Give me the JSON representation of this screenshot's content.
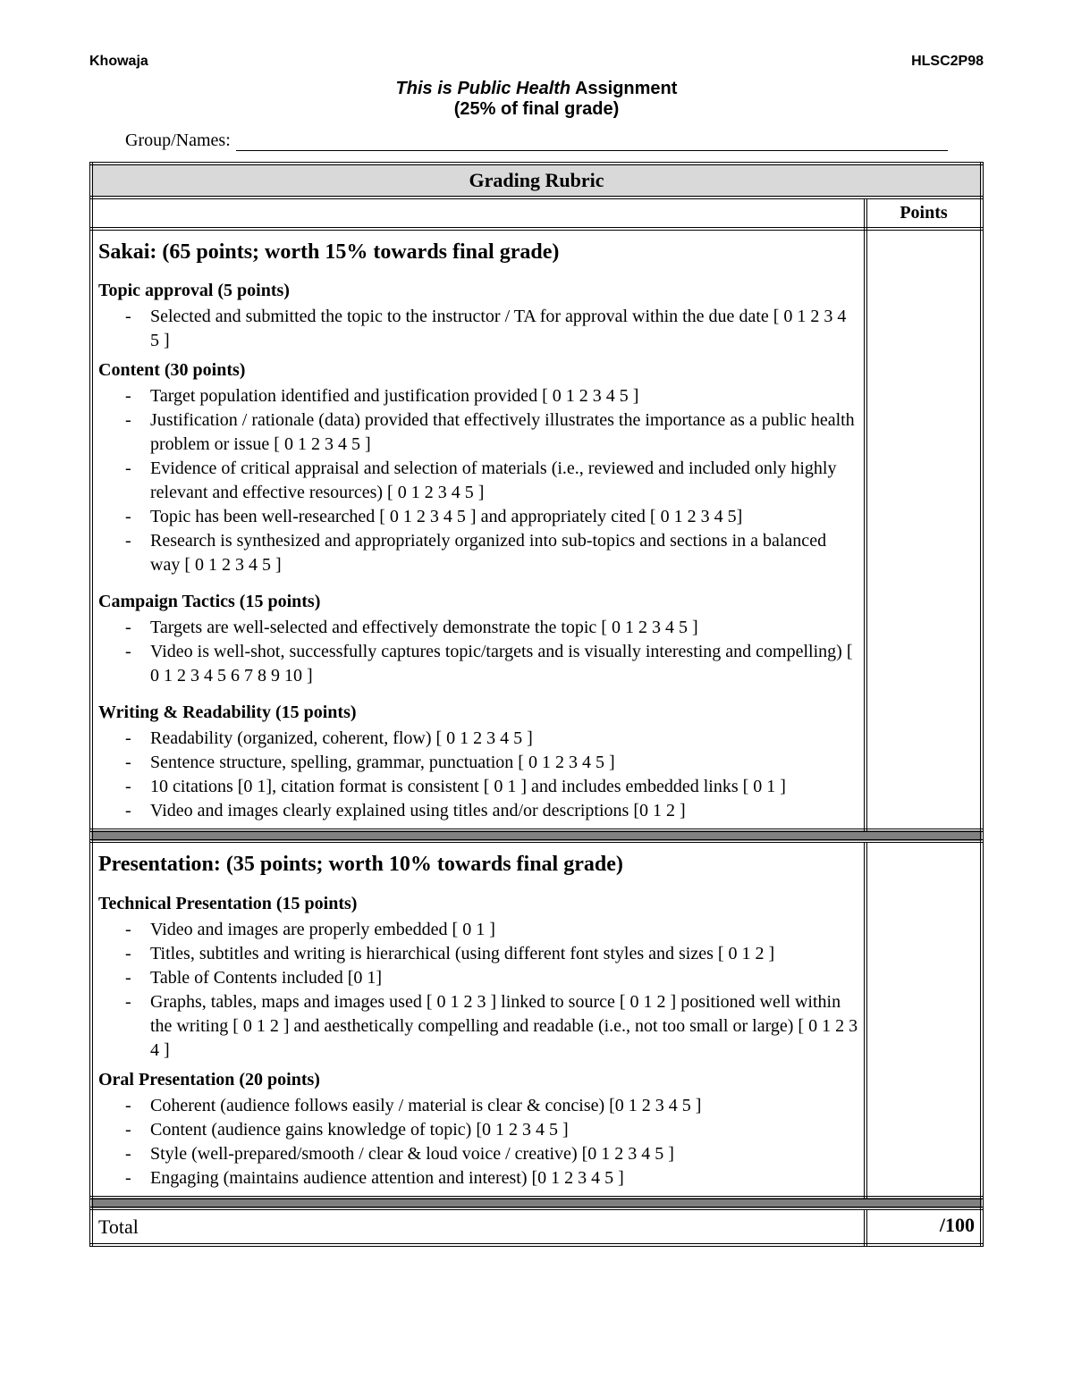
{
  "header": {
    "left": "Khowaja",
    "right": "HLSC2P98"
  },
  "title": {
    "line1_italic": "This is Public Health",
    "line1_rest": " Assignment",
    "line2": "(25% of final grade)"
  },
  "group_label": "Group/Names:",
  "rubric_header": "Grading Rubric",
  "points_header": "Points",
  "sakai": {
    "heading": "Sakai: (65 points; worth 15% towards final grade)",
    "topic_approval": {
      "heading": "Topic approval (5 points)",
      "items": [
        "Selected and submitted the topic to the instructor / TA for approval within the due date [ 0 1 2 3 4 5 ]"
      ]
    },
    "content": {
      "heading": "Content (30 points)",
      "items": [
        "Target population identified and justification provided [ 0 1 2 3 4 5 ]",
        "Justification / rationale (data) provided that effectively illustrates the importance as a public health problem or issue [ 0 1 2 3 4 5 ]",
        "Evidence of critical appraisal and selection of materials (i.e., reviewed and included only highly relevant and effective resources) [ 0 1 2 3 4 5 ]",
        "Topic has been well-researched [ 0 1 2 3 4 5 ] and appropriately cited [ 0 1 2 3 4 5]",
        "Research is synthesized and appropriately organized into sub-topics and sections in a balanced way [ 0 1 2 3 4 5 ]"
      ]
    },
    "campaign": {
      "heading": "Campaign Tactics (15 points)",
      "items": [
        "Targets are well-selected and effectively demonstrate the topic  [ 0 1 2 3 4 5 ]",
        "Video is well-shot, successfully captures topic/targets and is visually interesting and compelling) [ 0 1 2 3 4 5 6 7 8 9 10 ]"
      ]
    },
    "writing": {
      "heading": "Writing & Readability (15 points)",
      "items": [
        "Readability  (organized, coherent, flow) [ 0 1 2 3 4 5 ]",
        "Sentence structure, spelling, grammar, punctuation [ 0 1 2 3 4 5 ]",
        "10 citations [0 1], citation format is consistent [ 0 1 ] and includes embedded links [ 0 1 ]",
        "Video and images clearly explained using titles and/or descriptions [0 1 2 ]"
      ]
    }
  },
  "presentation": {
    "heading": "Presentation: (35 points; worth 10% towards final grade)",
    "technical": {
      "heading": "Technical Presentation (15 points)",
      "items": [
        "Video and images are properly embedded [ 0 1 ]",
        "Titles, subtitles and writing is hierarchical (using different font styles and sizes [ 0 1 2 ]",
        "Table of Contents included [0 1]",
        "Graphs, tables, maps and images used [ 0 1 2 3 ] linked to source [ 0 1 2 ] positioned well within the writing [ 0 1 2 ] and aesthetically compelling and readable (i.e., not too small or large) [ 0 1 2 3 4 ]"
      ]
    },
    "oral": {
      "heading": "Oral Presentation (20 points)",
      "items": [
        "Coherent (audience follows easily / material is clear & concise) [0 1 2 3 4 5 ]",
        "Content (audience gains knowledge of topic)   [0 1 2 3 4 5 ]",
        "Style (well-prepared/smooth / clear & loud voice / creative)  [0 1 2 3 4 5 ]",
        "Engaging (maintains audience attention and interest)   [0 1 2 3 4 5 ]"
      ]
    }
  },
  "total": {
    "label": "Total",
    "value": "/100"
  }
}
